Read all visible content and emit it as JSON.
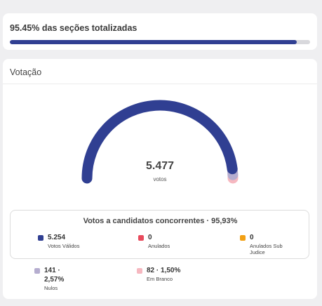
{
  "progress": {
    "title": "95.45% das seções totalizadas",
    "fraction": 0.9545,
    "fill_color": "#303f92",
    "track_color": "#d8d8dc"
  },
  "votacao": {
    "title": "Votação",
    "gauge": {
      "value": "5.477",
      "unit": "votos",
      "segments": [
        {
          "name": "Votos Válidos",
          "fraction": 0.9593,
          "color": "#303f92"
        },
        {
          "name": "Nulos",
          "fraction": 0.0257,
          "color": "#b5adcf"
        },
        {
          "name": "Em Branco",
          "fraction": 0.015,
          "color": "#f6b8c0"
        }
      ]
    },
    "summary_title": "Votos a candidatos concorrentes · 95,93%",
    "legend": [
      {
        "value": "5.254",
        "label": "Votos Válidos",
        "color": "#303f92"
      },
      {
        "value": "0",
        "label": "Anulados",
        "color": "#e84a5c"
      },
      {
        "value": "0",
        "label_line1": "Anulados Sub",
        "label_line2": "Judice",
        "color": "#f2a014"
      },
      {
        "value_line1": "141 ·",
        "value_line2": "2,57%",
        "label": "Nulos",
        "color": "#b5adcf"
      },
      {
        "value": "82 · 1,50%",
        "label": "Em Branco",
        "color": "#f6b8c0"
      }
    ]
  }
}
